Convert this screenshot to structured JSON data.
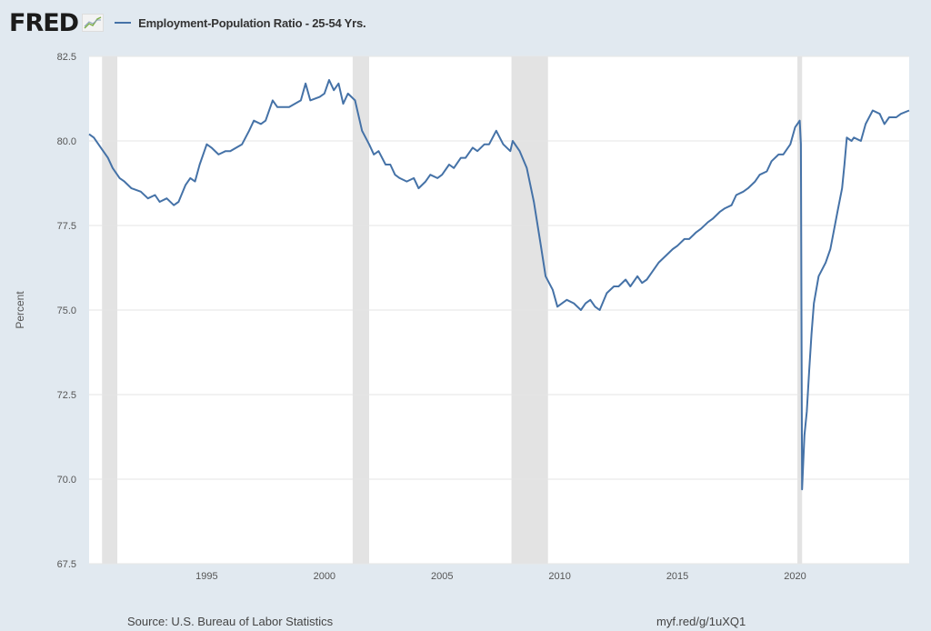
{
  "header": {
    "logo": "FRED",
    "logo_icon": "chart-line-icon"
  },
  "footer": {
    "source": "Source: U.S. Bureau of Labor Statistics",
    "link": "myf.red/g/1uXQ1"
  },
  "colors": {
    "series": "#4572a7",
    "background": "#e1e9f0",
    "recession": "#e3e3e3",
    "grid": "#e6e6e6"
  },
  "chart_data": {
    "type": "line",
    "title": "Employment-Population Ratio - 25-54 Yrs.",
    "xlabel": "",
    "ylabel": "Percent",
    "xlim": [
      1990.0,
      2024.85
    ],
    "ylim": [
      67.5,
      82.5
    ],
    "yticks": [
      "67.5",
      "70.0",
      "72.5",
      "75.0",
      "77.5",
      "80.0",
      "82.5"
    ],
    "xticks": [
      "1995",
      "2000",
      "2005",
      "2010",
      "2015",
      "2020"
    ],
    "grid": true,
    "legend": "top-left",
    "recessions": [
      [
        1990.55,
        1991.2
      ],
      [
        2001.2,
        2001.9
      ],
      [
        2007.95,
        2009.5
      ],
      [
        2020.1,
        2020.3
      ]
    ],
    "series": [
      {
        "name": "Employment-Population Ratio - 25-54 Yrs.",
        "x": [
          1990.0,
          1990.2,
          1990.5,
          1990.8,
          1991.0,
          1991.3,
          1991.5,
          1991.8,
          1992.2,
          1992.5,
          1992.8,
          1993.0,
          1993.3,
          1993.6,
          1993.8,
          1994.1,
          1994.3,
          1994.5,
          1994.7,
          1995.0,
          1995.2,
          1995.5,
          1995.8,
          1996.0,
          1996.5,
          1996.8,
          1997.0,
          1997.3,
          1997.5,
          1997.8,
          1998.0,
          1998.5,
          1999.0,
          1999.2,
          1999.4,
          1999.8,
          2000.0,
          2000.2,
          2000.4,
          2000.6,
          2000.8,
          2001.0,
          2001.3,
          2001.6,
          2001.9,
          2002.1,
          2002.3,
          2002.6,
          2002.8,
          2003.0,
          2003.2,
          2003.5,
          2003.8,
          2004.0,
          2004.3,
          2004.5,
          2004.8,
          2005.0,
          2005.3,
          2005.5,
          2005.8,
          2006.0,
          2006.3,
          2006.5,
          2006.8,
          2007.0,
          2007.3,
          2007.6,
          2007.9,
          2008.0,
          2008.3,
          2008.6,
          2008.9,
          2009.2,
          2009.4,
          2009.7,
          2009.9,
          2010.1,
          2010.3,
          2010.6,
          2010.9,
          2011.1,
          2011.3,
          2011.5,
          2011.7,
          2012.0,
          2012.3,
          2012.5,
          2012.8,
          2013.0,
          2013.3,
          2013.5,
          2013.7,
          2013.9,
          2014.2,
          2014.5,
          2014.8,
          2015.0,
          2015.3,
          2015.5,
          2015.8,
          2016.0,
          2016.3,
          2016.5,
          2016.8,
          2017.0,
          2017.3,
          2017.5,
          2017.8,
          2018.0,
          2018.3,
          2018.5,
          2018.8,
          2019.0,
          2019.3,
          2019.5,
          2019.8,
          2020.0,
          2020.2,
          2020.25,
          2020.3,
          2020.4,
          2020.5,
          2020.6,
          2020.7,
          2020.8,
          2021.0,
          2021.3,
          2021.5,
          2021.8,
          2022.0,
          2022.1,
          2022.2,
          2022.4,
          2022.5,
          2022.8,
          2023.0,
          2023.3,
          2023.6,
          2023.8,
          2024.0,
          2024.3,
          2024.5,
          2024.85
        ],
        "values": [
          80.2,
          80.1,
          79.8,
          79.5,
          79.2,
          78.9,
          78.8,
          78.6,
          78.5,
          78.3,
          78.4,
          78.2,
          78.3,
          78.1,
          78.2,
          78.7,
          78.9,
          78.8,
          79.3,
          79.9,
          79.8,
          79.6,
          79.7,
          79.7,
          79.9,
          80.3,
          80.6,
          80.5,
          80.6,
          81.2,
          81.0,
          81.0,
          81.2,
          81.7,
          81.2,
          81.3,
          81.4,
          81.8,
          81.5,
          81.7,
          81.1,
          81.4,
          81.2,
          80.3,
          79.9,
          79.6,
          79.7,
          79.3,
          79.3,
          79.0,
          78.9,
          78.8,
          78.9,
          78.6,
          78.8,
          79.0,
          78.9,
          79.0,
          79.3,
          79.2,
          79.5,
          79.5,
          79.8,
          79.7,
          79.9,
          79.9,
          80.3,
          79.9,
          79.7,
          80.0,
          79.7,
          79.2,
          78.2,
          76.9,
          76.0,
          75.6,
          75.1,
          75.2,
          75.3,
          75.2,
          75.0,
          75.2,
          75.3,
          75.1,
          75.0,
          75.5,
          75.7,
          75.7,
          75.9,
          75.7,
          76.0,
          75.8,
          75.9,
          76.1,
          76.4,
          76.6,
          76.8,
          76.9,
          77.1,
          77.1,
          77.3,
          77.4,
          77.6,
          77.7,
          77.9,
          78.0,
          78.1,
          78.4,
          78.5,
          78.6,
          78.8,
          79.0,
          79.1,
          79.4,
          79.6,
          79.6,
          79.9,
          80.4,
          80.6,
          79.9,
          69.7,
          71.3,
          72.0,
          73.2,
          74.3,
          75.2,
          76.0,
          76.4,
          76.8,
          77.9,
          78.6,
          79.3,
          80.1,
          80.0,
          80.1,
          80.0,
          80.5,
          80.9,
          80.8,
          80.5,
          80.7,
          80.7,
          80.8,
          80.9
        ]
      }
    ]
  }
}
